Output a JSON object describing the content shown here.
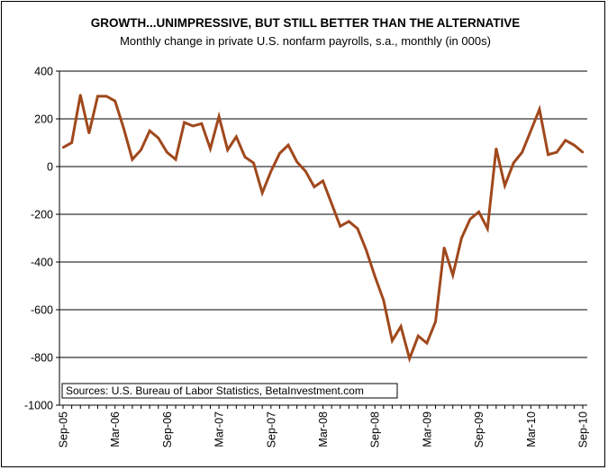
{
  "chart_data": {
    "type": "line",
    "title": "GROWTH...UNIMPRESSIVE, BUT STILL BETTER THAN THE ALTERNATIVE",
    "subtitle": "Monthly change in private U.S. nonfarm payrolls, s.a., monthly (in 000s)",
    "xlabel": "",
    "ylabel": "",
    "ylim": [
      -1000,
      400
    ],
    "yticks": [
      400,
      200,
      0,
      -200,
      -400,
      -600,
      -800,
      -1000
    ],
    "ytick_labels": [
      "400",
      "200",
      "0",
      "-200",
      "-400",
      "-600",
      "-800",
      "-1000"
    ],
    "xtick_labels": [
      "Sep-05",
      "Mar-06",
      "Sep-06",
      "Mar-07",
      "Sep-07",
      "Mar-08",
      "Sep-08",
      "Mar-09",
      "Sep-09",
      "Mar-10",
      "Sep-10"
    ],
    "xtick_indices": [
      0,
      6,
      12,
      18,
      24,
      30,
      36,
      42,
      48,
      54,
      60
    ],
    "grid": true,
    "series": [
      {
        "name": "Private nonfarm payroll change",
        "color": "#a0481c",
        "start": "Sep-05",
        "values": [
          80,
          100,
          300,
          140,
          295,
          295,
          275,
          160,
          30,
          70,
          150,
          120,
          60,
          30,
          185,
          170,
          180,
          75,
          210,
          70,
          125,
          40,
          15,
          -110,
          -20,
          55,
          90,
          20,
          -20,
          -85,
          -60,
          -155,
          -250,
          -230,
          -260,
          -350,
          -460,
          -560,
          -730,
          -670,
          -805,
          -710,
          -740,
          -650,
          -340,
          -455,
          -300,
          -220,
          -190,
          -260,
          75,
          -80,
          15,
          60,
          150,
          240,
          50,
          60,
          110,
          90,
          60
        ]
      }
    ],
    "source": "Sources: U.S. Bureau of Labor Statistics, BetaInvestment.com"
  }
}
